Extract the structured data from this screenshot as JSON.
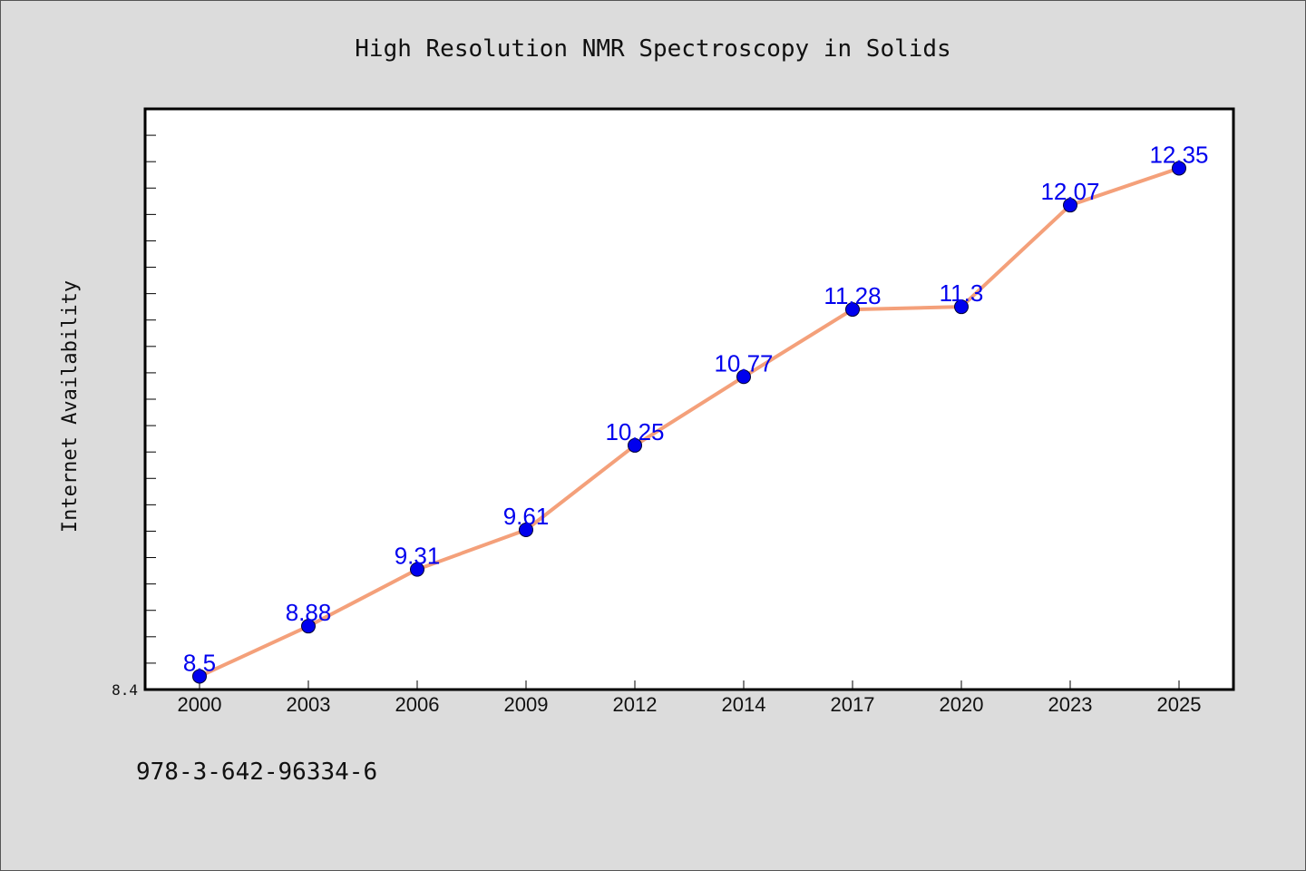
{
  "chart_data": {
    "type": "line",
    "title": "High Resolution NMR Spectroscopy in Solids",
    "xlabel": "",
    "ylabel": "Internet Availability",
    "categories": [
      "2000",
      "2003",
      "2006",
      "2009",
      "2012",
      "2014",
      "2017",
      "2020",
      "2023",
      "2025"
    ],
    "series": [
      {
        "values": [
          8.5,
          8.88,
          9.31,
          9.61,
          10.25,
          10.77,
          11.28,
          11.3,
          12.07,
          12.35
        ]
      }
    ],
    "data_labels": [
      "8.5",
      "8.88",
      "9.31",
      "9.61",
      "10.25",
      "10.77",
      "11.28",
      "11.3",
      "12.07",
      "12.35"
    ],
    "ylim": [
      8.4,
      12.8
    ],
    "ytick_labels": [
      "8.4"
    ],
    "grid": false,
    "colors": {
      "line": "#f4a07a",
      "marker": "#0000ee",
      "label": "#0000ee",
      "background": "#dcdcdc",
      "plot_bg": "#ffffff"
    }
  },
  "footer": {
    "isbn": "978-3-642-96334-6"
  }
}
